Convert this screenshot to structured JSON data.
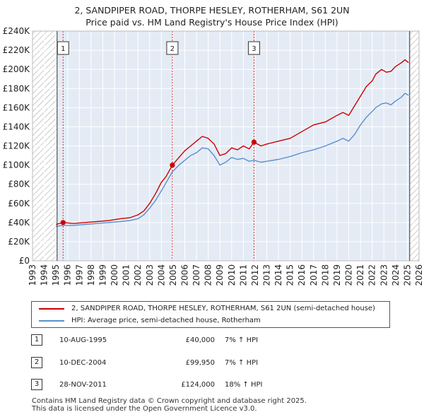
{
  "title_line1": "2, SANDPIPER ROAD, THORPE HESLEY, ROTHERHAM, S61 2UN",
  "title_line2": "Price paid vs. HM Land Registry's House Price Index (HPI)",
  "colors": {
    "property": "#cc0000",
    "hpi": "#5b8fcc",
    "shade": "#e4ebf5"
  },
  "legend": {
    "property_label": "2, SANDPIPER ROAD, THORPE HESLEY, ROTHERHAM, S61 2UN (semi-detached house)",
    "hpi_label": "HPI: Average price, semi-detached house, Rotherham"
  },
  "transactions": [
    {
      "num": "1",
      "date": "10-AUG-1995",
      "price": "£40,000",
      "hpi": "7% ↑ HPI"
    },
    {
      "num": "2",
      "date": "10-DEC-2004",
      "price": "£99,950",
      "hpi": "7% ↑ HPI"
    },
    {
      "num": "3",
      "date": "28-NOV-2011",
      "price": "£124,000",
      "hpi": "18% ↑ HPI"
    }
  ],
  "footer": {
    "line1": "Contains HM Land Registry data © Crown copyright and database right 2025.",
    "line2": "This data is licensed under the Open Government Licence v3.0."
  },
  "chart_data": {
    "type": "line",
    "title": "2, SANDPIPER ROAD, THORPE HESLEY, ROTHERHAM, S61 2UN — Price paid vs. HM Land Registry's House Price Index (HPI)",
    "xlabel": "",
    "ylabel": "",
    "xlim": [
      1993,
      2026
    ],
    "ylim": [
      0,
      240000
    ],
    "y_ticks": [
      0,
      20000,
      40000,
      60000,
      80000,
      100000,
      120000,
      140000,
      160000,
      180000,
      200000,
      220000,
      240000
    ],
    "y_tick_labels": [
      "£0",
      "£20K",
      "£40K",
      "£60K",
      "£80K",
      "£100K",
      "£120K",
      "£140K",
      "£160K",
      "£180K",
      "£200K",
      "£220K",
      "£240K"
    ],
    "x_ticks": [
      1993,
      1994,
      1995,
      1996,
      1997,
      1998,
      1999,
      2000,
      2001,
      2002,
      2003,
      2004,
      2005,
      2006,
      2007,
      2008,
      2009,
      2010,
      2011,
      2012,
      2013,
      2014,
      2015,
      2016,
      2017,
      2018,
      2019,
      2020,
      2021,
      2022,
      2023,
      2024,
      2025,
      2026
    ],
    "hatched_ranges": [
      [
        1993,
        1995.1
      ],
      [
        2025.2,
        2026
      ]
    ],
    "shaded_range": [
      1995.1,
      2025.2
    ],
    "series": [
      {
        "name": "2, SANDPIPER ROAD, THORPE HESLEY, ROTHERHAM, S61 2UN (semi-detached house)",
        "color_key": "property",
        "x": [
          1995.0,
          1995.6,
          1996.5,
          1997.5,
          1998.5,
          1999.5,
          2000.5,
          2001.3,
          2002.0,
          2002.5,
          2003.0,
          2003.5,
          2004.0,
          2004.4,
          2004.94,
          2005.5,
          2006.0,
          2006.5,
          2007.0,
          2007.5,
          2008.0,
          2008.5,
          2009.0,
          2009.5,
          2010.0,
          2010.5,
          2011.0,
          2011.5,
          2011.91,
          2012.5,
          2013.0,
          2014.0,
          2015.0,
          2016.0,
          2017.0,
          2018.0,
          2019.0,
          2019.5,
          2020.0,
          2020.5,
          2021.0,
          2021.5,
          2022.0,
          2022.3,
          2022.8,
          2023.2,
          2023.6,
          2024.0,
          2024.5,
          2024.8,
          2025.1
        ],
        "y": [
          38000,
          40000,
          39000,
          40000,
          41000,
          42000,
          44000,
          45000,
          48000,
          52000,
          60000,
          70000,
          82000,
          88000,
          99950,
          108000,
          115000,
          120000,
          125000,
          130000,
          128000,
          122000,
          110000,
          112000,
          118000,
          116000,
          120000,
          117000,
          124000,
          120000,
          122000,
          125000,
          128000,
          135000,
          142000,
          145000,
          152000,
          155000,
          152000,
          162000,
          172000,
          182000,
          188000,
          195000,
          200000,
          197000,
          198000,
          203000,
          207000,
          210000,
          207000
        ]
      },
      {
        "name": "HPI: Average price, semi-detached house, Rotherham",
        "color_key": "hpi",
        "x": [
          1995.0,
          1995.6,
          1996.5,
          1997.5,
          1998.5,
          1999.5,
          2000.5,
          2001.3,
          2002.0,
          2002.5,
          2003.0,
          2003.5,
          2004.0,
          2004.94,
          2005.5,
          2006.0,
          2006.5,
          2007.0,
          2007.5,
          2008.0,
          2008.5,
          2009.0,
          2009.5,
          2010.0,
          2010.5,
          2011.0,
          2011.5,
          2011.91,
          2012.5,
          2013.0,
          2014.0,
          2015.0,
          2016.0,
          2017.0,
          2018.0,
          2019.0,
          2019.5,
          2020.0,
          2020.5,
          2021.0,
          2021.5,
          2022.0,
          2022.3,
          2022.8,
          2023.2,
          2023.6,
          2024.0,
          2024.5,
          2024.8,
          2025.1
        ],
        "y": [
          36000,
          37000,
          37000,
          38000,
          39000,
          40000,
          41000,
          42000,
          44000,
          48000,
          55000,
          63000,
          73000,
          93000,
          100000,
          105000,
          110000,
          113000,
          118000,
          117000,
          110000,
          100000,
          103000,
          108000,
          106000,
          107000,
          104000,
          105000,
          103000,
          104000,
          106000,
          109000,
          113000,
          116000,
          120000,
          125000,
          128000,
          125000,
          132000,
          142000,
          150000,
          156000,
          160000,
          164000,
          165000,
          163000,
          167000,
          171000,
          175000,
          173000
        ]
      }
    ],
    "annotations": [
      {
        "label": "1",
        "x": 1995.61,
        "y": 40000
      },
      {
        "label": "2",
        "x": 2004.94,
        "y": 99950
      },
      {
        "label": "3",
        "x": 2011.91,
        "y": 124000
      }
    ]
  }
}
